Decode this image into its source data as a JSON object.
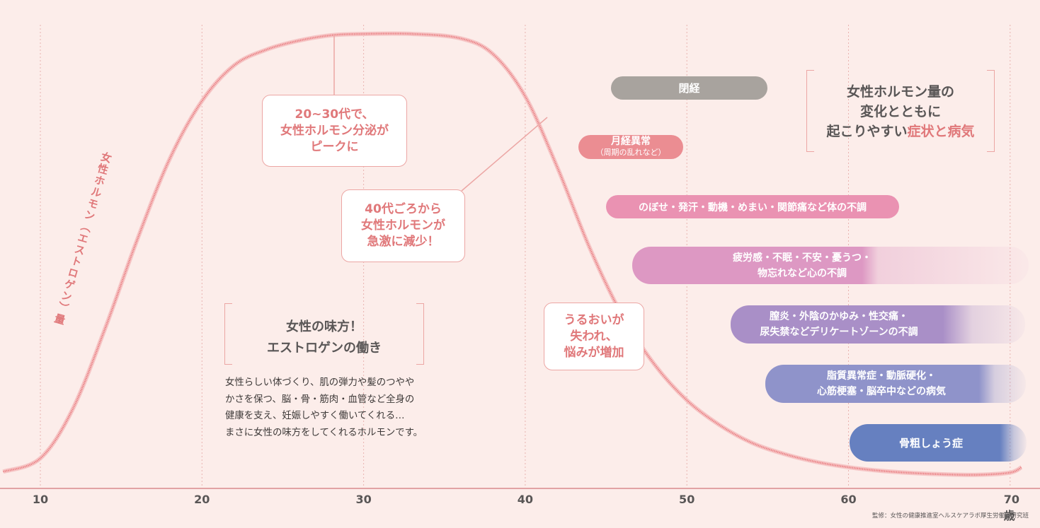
{
  "chart_data": {
    "type": "area",
    "xlim": [
      10,
      71
    ],
    "x_ticks": [
      "10",
      "20",
      "30",
      "40",
      "50",
      "60",
      "70"
    ],
    "x_unit": "歳",
    "ylabel": "女性ホルモン（エストロゲン）量",
    "curve": [
      [
        7.7,
        0.02
      ],
      [
        10,
        0.05
      ],
      [
        12,
        0.16
      ],
      [
        14,
        0.34
      ],
      [
        16,
        0.54
      ],
      [
        18,
        0.72
      ],
      [
        20,
        0.85
      ],
      [
        22,
        0.93
      ],
      [
        24,
        0.965
      ],
      [
        26,
        0.985
      ],
      [
        28,
        0.997
      ],
      [
        30,
        1.0
      ],
      [
        33,
        1.0
      ],
      [
        36,
        0.99
      ],
      [
        38,
        0.955
      ],
      [
        40,
        0.86
      ],
      [
        42,
        0.7
      ],
      [
        44,
        0.52
      ],
      [
        46,
        0.37
      ],
      [
        48,
        0.26
      ],
      [
        50,
        0.18
      ],
      [
        52,
        0.125
      ],
      [
        54,
        0.085
      ],
      [
        56,
        0.06
      ],
      [
        58,
        0.042
      ],
      [
        60,
        0.03
      ],
      [
        62,
        0.022
      ],
      [
        64,
        0.017
      ],
      [
        66,
        0.014
      ],
      [
        68,
        0.013
      ],
      [
        70,
        0.018
      ],
      [
        70.7,
        0.03
      ]
    ],
    "grid": "vertical dotted",
    "colors": {
      "curve": "#e97a7e",
      "axis": "#d98a8c",
      "grid": "#e9b3b0"
    }
  },
  "title_box": {
    "line1": "女性ホルモン量の",
    "line2": "変化とともに",
    "line3_plain": "起こりやすい",
    "line3_accent": "症状と病気"
  },
  "callouts": {
    "peak": [
      "20~30代で、",
      "女性ホルモン分泌が",
      "ピークに"
    ],
    "decline": [
      "40代ごろから",
      "女性ホルモンが",
      "急激に減少！"
    ],
    "moisture": [
      "うるおいが",
      "失われ、",
      "悩みが増加"
    ]
  },
  "estrogen_info": {
    "heading1": "女性の味方！",
    "heading2": "エストロゲンの働き",
    "body": [
      "女性らしい体づくり、肌の弾力や髪のつやや",
      "かさを保つ、脳・骨・筋肉・血管など全身の",
      "健康を支え、妊娠しやすく働いてくれる…",
      "まさに女性の味方をしてくれるホルモンです。"
    ]
  },
  "symptoms": [
    {
      "lines": [
        "閉経"
      ],
      "color": "#a8a39e"
    },
    {
      "lines": [
        "月経異常",
        "（周期の乱れなど）"
      ],
      "color": "#eb8d92"
    },
    {
      "lines": [
        "のぼせ・発汗・動機・めまい・関節痛など体の不調"
      ],
      "color": "#ea92b2"
    },
    {
      "lines": [
        "疲労感・不眠・不安・憂うつ・",
        "物忘れなど心の不調"
      ],
      "color": "#dd98c3"
    },
    {
      "lines": [
        "膣炎・外陰のかゆみ・性交痛・",
        "尿失禁などデリケートゾーンの不調"
      ],
      "color": "#a98fc7"
    },
    {
      "lines": [
        "脂質異常症・動脈硬化・",
        "心筋梗塞・脳卒中などの病気"
      ],
      "color": "#8f93ca"
    },
    {
      "lines": [
        "骨粗しょう症"
      ],
      "color": "#6680c0"
    }
  ],
  "source": "監修：女性の健康推進室ヘルスケアラボ厚生労働省研究班"
}
